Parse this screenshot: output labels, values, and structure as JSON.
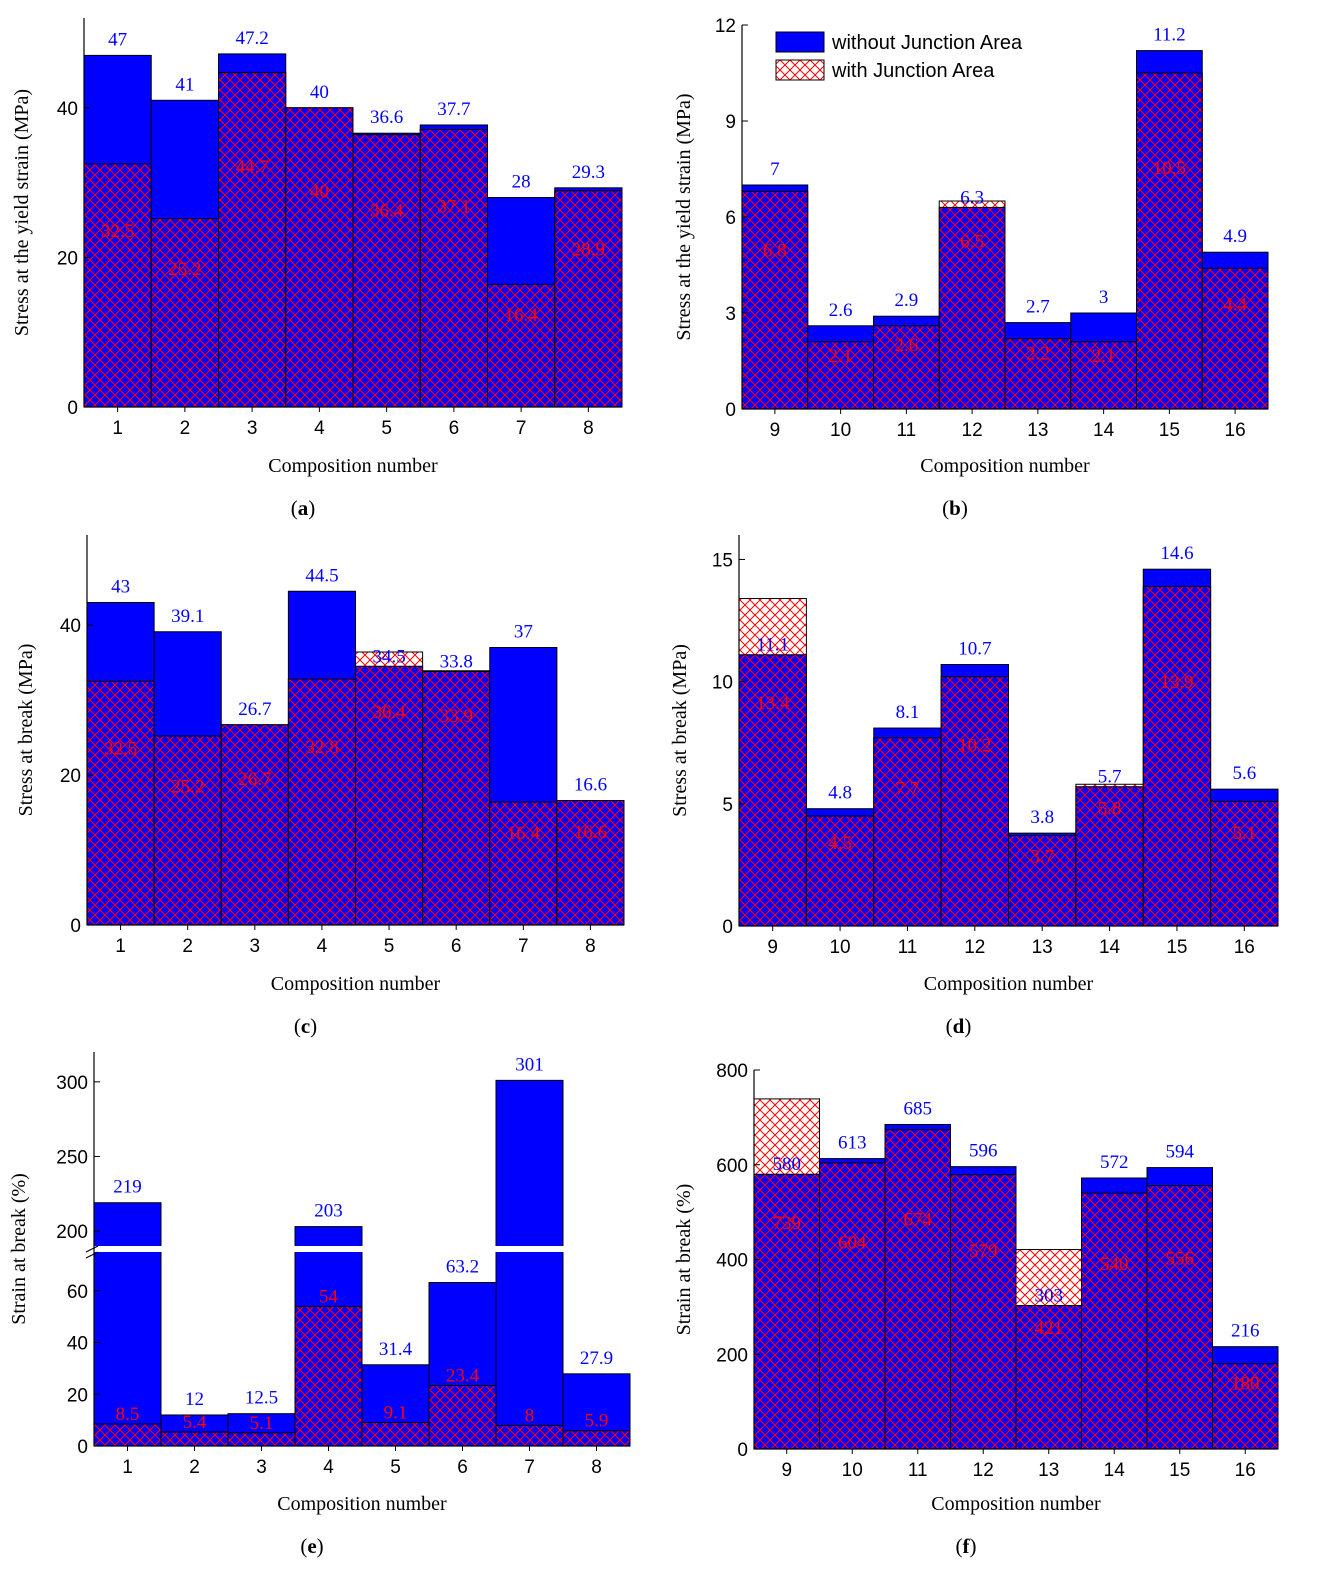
{
  "figure": {
    "colors": {
      "without": "#0000ff",
      "with_hatch": "#ff0000",
      "top_label": "#0000ff",
      "inner_label": "#ff0000"
    },
    "legend": {
      "items": [
        {
          "label": "without Junction Area",
          "style": "solid-blue"
        },
        {
          "label": "with Junction Area",
          "style": "red-crosshatch"
        }
      ],
      "placement": "top-left of panel (b)"
    }
  },
  "chart_data": [
    {
      "id": "a",
      "panel_label": "(a)",
      "type": "bar",
      "title": "",
      "xlabel": "Composition number",
      "ylabel": "Stress at the yield strain (MPa)",
      "categories": [
        "1",
        "2",
        "3",
        "4",
        "5",
        "6",
        "7",
        "8"
      ],
      "ylim": [
        0,
        52
      ],
      "yticks": [
        0,
        20,
        40
      ],
      "series": [
        {
          "name": "without Junction Area",
          "values": [
            47,
            41,
            47.2,
            40,
            36.6,
            37.7,
            28,
            29.3
          ]
        },
        {
          "name": "with Junction Area",
          "values": [
            32.5,
            25.2,
            44.7,
            40,
            36.4,
            37.1,
            16.4,
            28.9
          ]
        }
      ]
    },
    {
      "id": "b",
      "panel_label": "(b)",
      "type": "bar",
      "title": "",
      "xlabel": "Composition number",
      "ylabel": "Stress at the yield strain (MPa)",
      "categories": [
        "9",
        "10",
        "11",
        "12",
        "13",
        "14",
        "15",
        "16"
      ],
      "ylim": [
        0,
        12
      ],
      "yticks": [
        0,
        3,
        6,
        9,
        12
      ],
      "series": [
        {
          "name": "without Junction Area",
          "values": [
            7,
            2.6,
            2.9,
            6.3,
            2.7,
            3,
            11.2,
            4.9
          ]
        },
        {
          "name": "with Junction Area",
          "values": [
            6.8,
            2.1,
            2.6,
            6.5,
            2.2,
            2.1,
            10.5,
            4.4
          ]
        }
      ],
      "legend": "top-left"
    },
    {
      "id": "c",
      "panel_label": "(c)",
      "type": "bar",
      "title": "",
      "xlabel": "Composition number",
      "ylabel": "Stress at break (MPa)",
      "categories": [
        "1",
        "2",
        "3",
        "4",
        "5",
        "6",
        "7",
        "8"
      ],
      "ylim": [
        0,
        52
      ],
      "yticks": [
        0,
        20,
        40
      ],
      "series": [
        {
          "name": "without Junction Area",
          "values": [
            43,
            39.1,
            26.7,
            44.5,
            34.5,
            33.8,
            37,
            16.6
          ]
        },
        {
          "name": "with Junction Area",
          "values": [
            32.5,
            25.2,
            26.7,
            32.8,
            36.4,
            33.9,
            16.4,
            16.6
          ]
        }
      ]
    },
    {
      "id": "d",
      "panel_label": "(d)",
      "type": "bar",
      "title": "",
      "xlabel": "Composition number",
      "ylabel": "Stress at break (MPa)",
      "categories": [
        "9",
        "10",
        "11",
        "12",
        "13",
        "14",
        "15",
        "16"
      ],
      "ylim": [
        0,
        16
      ],
      "yticks": [
        0,
        5,
        10,
        15
      ],
      "series": [
        {
          "name": "without Junction Area",
          "values": [
            11.1,
            4.8,
            8.1,
            10.7,
            3.8,
            5.7,
            14.6,
            5.6
          ]
        },
        {
          "name": "with Junction Area",
          "values": [
            13.4,
            4.5,
            7.7,
            10.2,
            3.7,
            5.8,
            13.9,
            5.1
          ]
        }
      ]
    },
    {
      "id": "e",
      "panel_label": "(e)",
      "type": "bar",
      "title": "",
      "xlabel": "Composition number",
      "ylabel": "Strain at break (%)",
      "categories": [
        "1",
        "2",
        "3",
        "4",
        "5",
        "6",
        "7",
        "8"
      ],
      "axis_break": {
        "lower": [
          0,
          75
        ],
        "upper": [
          190,
          320
        ]
      },
      "yticks": [
        0,
        20,
        40,
        60,
        200,
        250,
        300
      ],
      "series": [
        {
          "name": "without Junction Area",
          "values": [
            219,
            12,
            12.5,
            203,
            31.4,
            63.2,
            301,
            27.9
          ]
        },
        {
          "name": "with Junction Area",
          "values": [
            8.5,
            5.4,
            5.1,
            54,
            9.1,
            23.4,
            8,
            5.9
          ]
        }
      ]
    },
    {
      "id": "f",
      "panel_label": "(f)",
      "type": "bar",
      "title": "",
      "xlabel": "Composition number",
      "ylabel": "Strain at break (%)",
      "categories": [
        "9",
        "10",
        "11",
        "12",
        "13",
        "14",
        "15",
        "16"
      ],
      "ylim": [
        0,
        800
      ],
      "yticks": [
        0,
        200,
        400,
        600,
        800
      ],
      "series": [
        {
          "name": "without Junction Area",
          "values": [
            580,
            613,
            685,
            596,
            303,
            572,
            594,
            216
          ]
        },
        {
          "name": "with Junction Area",
          "values": [
            739,
            604,
            674,
            579,
            421,
            540,
            556,
            180
          ]
        }
      ]
    }
  ]
}
